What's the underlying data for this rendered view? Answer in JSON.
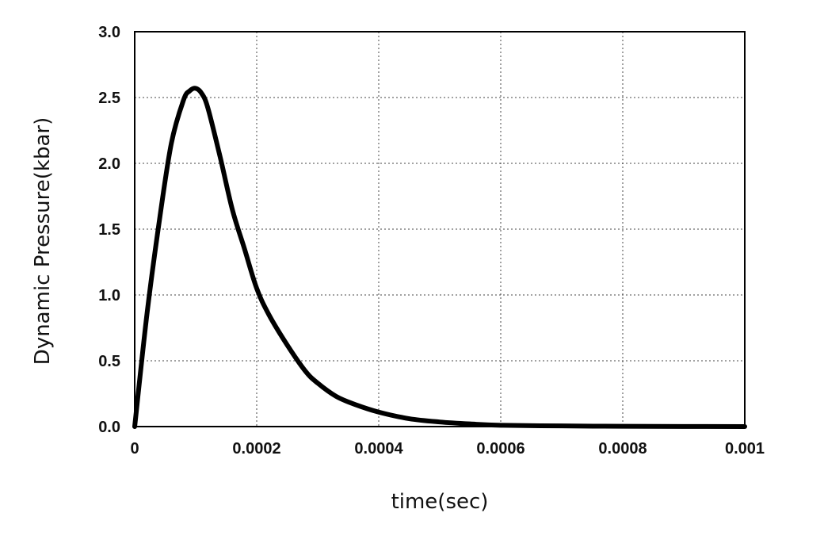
{
  "chart_data": {
    "type": "line",
    "title": "",
    "xlabel": "time(sec)",
    "ylabel": "Dynamic Pressure(kbar)",
    "xlim": [
      0,
      0.001
    ],
    "ylim": [
      0,
      3.0
    ],
    "grid": true,
    "x_ticks": [
      0,
      0.0002,
      0.0004,
      0.0006,
      0.0008,
      0.001
    ],
    "x_tick_labels": [
      "0",
      "0.0002",
      "0.0004",
      "0.0006",
      "0.0008",
      "0.001"
    ],
    "y_ticks": [
      0,
      0.5,
      1.0,
      1.5,
      2.0,
      2.5,
      3.0
    ],
    "y_tick_labels": [
      "0.0",
      "0.5",
      "1.0",
      "1.5",
      "2.0",
      "2.5",
      "3.0"
    ],
    "series": [
      {
        "color": "#000000",
        "x": [
          0,
          2e-05,
          4e-05,
          6e-05,
          8e-05,
          9e-05,
          0.0001,
          0.00011,
          0.00012,
          0.00014,
          0.00016,
          0.00018,
          0.0002,
          0.00022,
          0.00025,
          0.00028,
          0.0003,
          0.00033,
          0.00036,
          0.0004,
          0.00045,
          0.0005,
          0.00055,
          0.0006,
          0.0007,
          0.0008,
          0.0009,
          0.001
        ],
        "y": [
          0,
          0.85,
          1.55,
          2.15,
          2.48,
          2.55,
          2.57,
          2.53,
          2.42,
          2.05,
          1.65,
          1.35,
          1.05,
          0.85,
          0.62,
          0.42,
          0.33,
          0.23,
          0.17,
          0.11,
          0.06,
          0.035,
          0.02,
          0.01,
          0.005,
          0.002,
          0.001,
          0.0
        ]
      }
    ]
  }
}
